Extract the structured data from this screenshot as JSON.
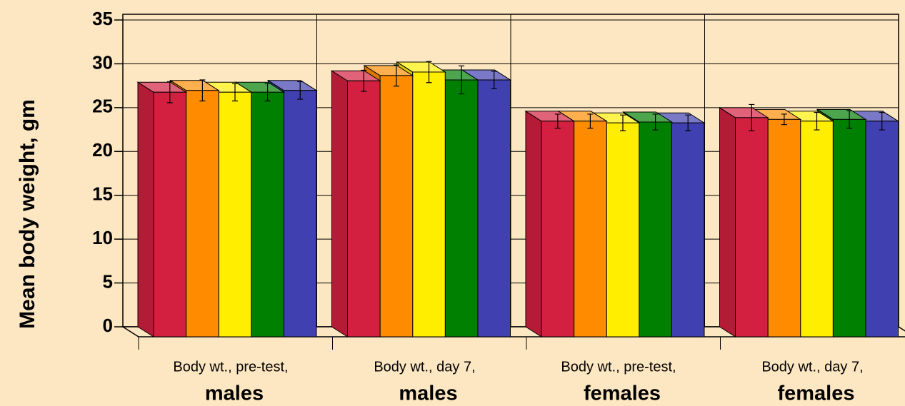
{
  "chart_data": {
    "type": "bar3d",
    "y_label": "Mean body weight, gm",
    "categories": [
      [
        "Body wt., pre-test,",
        "males"
      ],
      [
        "Body wt., day 7,",
        "males"
      ],
      [
        "Body wt., pre-test,",
        "females"
      ],
      [
        "Body wt., day 7,",
        "females"
      ]
    ],
    "series": [
      {
        "color": "#d42040",
        "values": [
          27.9,
          29.2,
          24.6,
          25.0
        ],
        "errors": [
          1.2,
          1.2,
          0.8,
          1.5
        ]
      },
      {
        "color": "#ff8c00",
        "values": [
          28.1,
          29.8,
          24.6,
          24.8
        ],
        "errors": [
          1.2,
          1.2,
          0.8,
          0.6
        ]
      },
      {
        "color": "#ffee00",
        "values": [
          27.9,
          30.2,
          24.4,
          24.6
        ],
        "errors": [
          1.0,
          1.2,
          0.9,
          1.0
        ]
      },
      {
        "color": "#008000",
        "values": [
          27.9,
          29.3,
          24.5,
          24.8
        ],
        "errors": [
          1.0,
          1.6,
          0.9,
          1.0
        ]
      },
      {
        "color": "#4040b0",
        "values": [
          28.1,
          29.3,
          24.4,
          24.6
        ],
        "errors": [
          1.0,
          1.0,
          0.9,
          1.0
        ]
      }
    ],
    "ylim": [
      0,
      35
    ],
    "yticks": [
      0,
      5,
      10,
      15,
      20,
      25,
      30,
      35
    ],
    "grid": true
  }
}
